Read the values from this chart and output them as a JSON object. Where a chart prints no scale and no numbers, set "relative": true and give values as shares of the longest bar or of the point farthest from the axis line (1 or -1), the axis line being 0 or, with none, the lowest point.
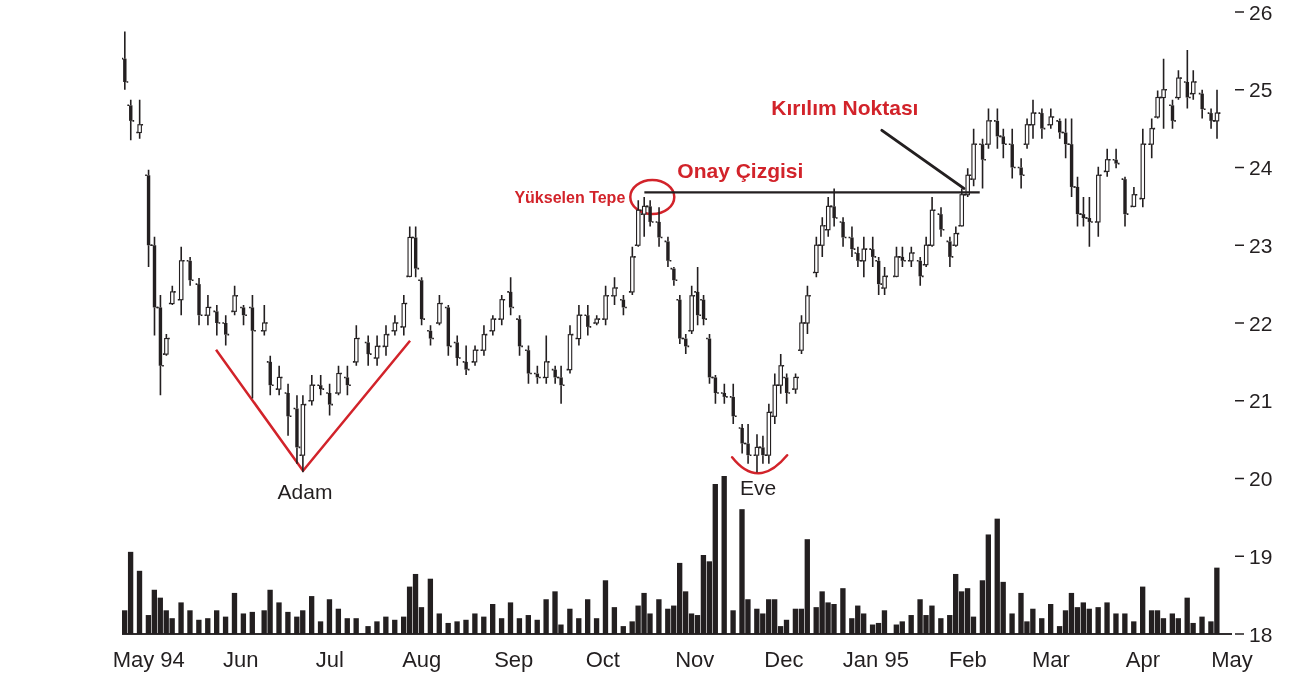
{
  "chart_data": [
    {
      "type": "candlestick",
      "color": "#231f20",
      "x": [
        "1994-04-23",
        "1994-04-25",
        "1994-04-28",
        "1994-05-01",
        "1994-05-03",
        "1994-05-05",
        "1994-05-07",
        "1994-05-09",
        "1994-05-12",
        "1994-05-15",
        "1994-05-18",
        "1994-05-21",
        "1994-05-24",
        "1994-05-27",
        "1994-05-30",
        "1994-06-02",
        "1994-06-05",
        "1994-06-09",
        "1994-06-11",
        "1994-06-14",
        "1994-06-17",
        "1994-06-20",
        "1994-06-22",
        "1994-06-25",
        "1994-06-28",
        "1994-07-01",
        "1994-07-04",
        "1994-07-07",
        "1994-07-10",
        "1994-07-14",
        "1994-07-17",
        "1994-07-20",
        "1994-07-23",
        "1994-07-26",
        "1994-07-28",
        "1994-07-30",
        "1994-08-01",
        "1994-08-04",
        "1994-08-07",
        "1994-08-10",
        "1994-08-13",
        "1994-08-16",
        "1994-08-19",
        "1994-08-22",
        "1994-08-25",
        "1994-08-28",
        "1994-08-31",
        "1994-09-03",
        "1994-09-06",
        "1994-09-09",
        "1994-09-12",
        "1994-09-15",
        "1994-09-17",
        "1994-09-20",
        "1994-09-23",
        "1994-09-26",
        "1994-09-29",
        "1994-10-02",
        "1994-10-05",
        "1994-10-08",
        "1994-10-11",
        "1994-10-13",
        "1994-10-15",
        "1994-10-17",
        "1994-10-20",
        "1994-10-23",
        "1994-10-25",
        "1994-10-27",
        "1994-10-29",
        "1994-10-31",
        "1994-11-02",
        "1994-11-04",
        "1994-11-06",
        "1994-11-08",
        "1994-11-11",
        "1994-11-14",
        "1994-11-17",
        "1994-11-19",
        "1994-11-22",
        "1994-11-24",
        "1994-11-26",
        "1994-11-28",
        "1994-11-30",
        "1994-12-02",
        "1994-12-05",
        "1994-12-07",
        "1994-12-09",
        "1994-12-12",
        "1994-12-14",
        "1994-12-16",
        "1994-12-18",
        "1994-12-21",
        "1994-12-24",
        "1994-12-26",
        "1994-12-28",
        "1994-12-31",
        "1995-01-02",
        "1995-01-04",
        "1995-01-08",
        "1995-01-10",
        "1995-01-13",
        "1995-01-16",
        "1995-01-18",
        "1995-01-20",
        "1995-01-23",
        "1995-01-26",
        "1995-01-28",
        "1995-01-30",
        "1995-02-01",
        "1995-02-03",
        "1995-02-06",
        "1995-02-08",
        "1995-02-11",
        "1995-02-13",
        "1995-02-16",
        "1995-02-19",
        "1995-02-21",
        "1995-02-23",
        "1995-02-26",
        "1995-03-01",
        "1995-03-04",
        "1995-03-06",
        "1995-03-08",
        "1995-03-10",
        "1995-03-12",
        "1995-03-14",
        "1995-03-17",
        "1995-03-20",
        "1995-03-23",
        "1995-03-26",
        "1995-03-29",
        "1995-04-01",
        "1995-04-04",
        "1995-04-06",
        "1995-04-08",
        "1995-04-11",
        "1995-04-13",
        "1995-04-16",
        "1995-04-18",
        "1995-04-21",
        "1995-04-24",
        "1995-04-26"
      ],
      "ohlc": [
        [
          25.4,
          25.75,
          25.0,
          25.1
        ],
        [
          24.8,
          24.87,
          24.35,
          24.6
        ],
        [
          24.45,
          24.87,
          24.37,
          24.55
        ],
        [
          23.9,
          23.97,
          22.72,
          23.0
        ],
        [
          23.0,
          23.11,
          21.84,
          22.2
        ],
        [
          22.2,
          22.36,
          21.07,
          21.45
        ],
        [
          21.6,
          21.86,
          21.58,
          21.8
        ],
        [
          22.25,
          22.48,
          22.23,
          22.4
        ],
        [
          22.3,
          22.98,
          22.1,
          22.8
        ],
        [
          22.8,
          22.85,
          22.48,
          22.55
        ],
        [
          22.5,
          22.58,
          21.97,
          22.1
        ],
        [
          22.1,
          22.36,
          21.97,
          22.2
        ],
        [
          22.15,
          22.23,
          21.84,
          22.0
        ],
        [
          22.0,
          22.1,
          21.71,
          21.85
        ],
        [
          22.15,
          22.48,
          22.1,
          22.35
        ],
        [
          22.2,
          22.23,
          21.97,
          22.1
        ],
        [
          22.2,
          22.36,
          21.03,
          21.9
        ],
        [
          21.9,
          22.23,
          21.84,
          22.0
        ],
        [
          21.5,
          21.58,
          21.07,
          21.2
        ],
        [
          21.15,
          21.45,
          21.07,
          21.3
        ],
        [
          21.1,
          21.22,
          20.55,
          20.8
        ],
        [
          20.9,
          21.07,
          20.19,
          20.4
        ],
        [
          20.3,
          21.07,
          20.08,
          20.95
        ],
        [
          21.0,
          21.33,
          20.94,
          21.2
        ],
        [
          21.2,
          21.33,
          21.07,
          21.15
        ],
        [
          21.1,
          21.22,
          20.81,
          20.95
        ],
        [
          21.1,
          21.45,
          21.07,
          21.35
        ],
        [
          21.3,
          21.45,
          21.07,
          21.2
        ],
        [
          21.5,
          21.97,
          21.45,
          21.8
        ],
        [
          21.75,
          21.84,
          21.45,
          21.6
        ],
        [
          21.55,
          21.84,
          21.45,
          21.7
        ],
        [
          21.7,
          21.97,
          21.58,
          21.85
        ],
        [
          21.9,
          22.1,
          21.84,
          22.0
        ],
        [
          21.95,
          22.36,
          21.84,
          22.25
        ],
        [
          22.6,
          23.24,
          22.59,
          23.1
        ],
        [
          23.1,
          23.24,
          22.59,
          22.7
        ],
        [
          22.55,
          22.59,
          21.97,
          22.05
        ],
        [
          21.9,
          21.97,
          21.71,
          21.8
        ],
        [
          22.0,
          22.36,
          21.97,
          22.25
        ],
        [
          22.2,
          22.23,
          21.58,
          21.7
        ],
        [
          21.75,
          21.84,
          21.45,
          21.55
        ],
        [
          21.5,
          21.71,
          21.33,
          21.4
        ],
        [
          21.5,
          21.71,
          21.45,
          21.65
        ],
        [
          21.65,
          21.97,
          21.58,
          21.85
        ],
        [
          21.9,
          22.1,
          21.84,
          22.05
        ],
        [
          22.05,
          22.36,
          21.97,
          22.3
        ],
        [
          22.4,
          22.59,
          22.1,
          22.2
        ],
        [
          22.05,
          22.1,
          21.58,
          21.7
        ],
        [
          21.65,
          21.71,
          21.22,
          21.35
        ],
        [
          21.35,
          21.45,
          21.22,
          21.3
        ],
        [
          21.3,
          21.84,
          21.22,
          21.5
        ],
        [
          21.4,
          21.45,
          21.22,
          21.3
        ],
        [
          21.3,
          21.45,
          20.96,
          21.2
        ],
        [
          21.4,
          21.97,
          21.35,
          21.85
        ],
        [
          21.8,
          22.23,
          21.71,
          22.1
        ],
        [
          22.1,
          22.23,
          21.84,
          21.95
        ],
        [
          22.0,
          22.1,
          21.97,
          22.05
        ],
        [
          22.05,
          22.48,
          21.97,
          22.35
        ],
        [
          22.35,
          22.59,
          22.23,
          22.45
        ],
        [
          22.3,
          22.36,
          22.1,
          22.2
        ],
        [
          22.4,
          22.98,
          22.36,
          22.85
        ],
        [
          23.0,
          23.58,
          22.98,
          23.45
        ],
        [
          23.4,
          23.62,
          23.11,
          23.5
        ],
        [
          23.5,
          23.58,
          23.24,
          23.3
        ],
        [
          23.3,
          23.49,
          22.98,
          23.1
        ],
        [
          23.05,
          23.11,
          22.72,
          22.8
        ],
        [
          22.7,
          22.72,
          22.48,
          22.55
        ],
        [
          22.3,
          22.36,
          21.73,
          21.8
        ],
        [
          21.8,
          21.86,
          21.6,
          21.7
        ],
        [
          21.9,
          22.48,
          21.86,
          22.35
        ],
        [
          22.4,
          22.72,
          21.97,
          22.1
        ],
        [
          22.3,
          22.36,
          21.97,
          22.05
        ],
        [
          21.8,
          21.86,
          21.22,
          21.3
        ],
        [
          21.3,
          21.33,
          20.96,
          21.1
        ],
        [
          21.1,
          21.22,
          20.96,
          21.05
        ],
        [
          21.05,
          21.22,
          20.7,
          20.8
        ],
        [
          20.65,
          20.7,
          20.32,
          20.45
        ],
        [
          20.45,
          20.7,
          20.19,
          20.3
        ],
        [
          20.3,
          20.57,
          20.08,
          20.4
        ],
        [
          20.4,
          20.55,
          20.19,
          20.3
        ],
        [
          20.3,
          20.96,
          20.19,
          20.85
        ],
        [
          20.8,
          21.35,
          20.7,
          21.2
        ],
        [
          21.2,
          21.6,
          21.09,
          21.45
        ],
        [
          21.3,
          21.35,
          20.96,
          21.1
        ],
        [
          21.15,
          21.35,
          21.09,
          21.3
        ],
        [
          21.65,
          22.1,
          21.6,
          22.0
        ],
        [
          22.0,
          22.48,
          21.86,
          22.35
        ],
        [
          22.65,
          23.11,
          22.59,
          23.0
        ],
        [
          23.0,
          23.36,
          22.85,
          23.25
        ],
        [
          23.2,
          23.62,
          23.11,
          23.5
        ],
        [
          23.5,
          23.73,
          23.24,
          23.35
        ],
        [
          23.3,
          23.36,
          22.98,
          23.1
        ],
        [
          23.1,
          23.24,
          22.85,
          22.95
        ],
        [
          22.9,
          22.98,
          22.72,
          22.8
        ],
        [
          22.8,
          23.11,
          22.59,
          22.95
        ],
        [
          22.95,
          23.11,
          22.72,
          22.85
        ],
        [
          22.8,
          22.85,
          22.36,
          22.5
        ],
        [
          22.45,
          22.72,
          22.36,
          22.6
        ],
        [
          22.6,
          22.98,
          22.59,
          22.85
        ],
        [
          22.85,
          22.98,
          22.72,
          22.8
        ],
        [
          22.8,
          22.98,
          22.72,
          22.9
        ],
        [
          22.8,
          22.85,
          22.48,
          22.6
        ],
        [
          22.75,
          23.11,
          22.72,
          23.0
        ],
        [
          23.0,
          23.62,
          22.98,
          23.45
        ],
        [
          23.4,
          23.49,
          23.11,
          23.2
        ],
        [
          23.05,
          23.11,
          22.72,
          22.85
        ],
        [
          23.0,
          23.24,
          22.98,
          23.15
        ],
        [
          23.25,
          23.73,
          23.24,
          23.65
        ],
        [
          23.65,
          23.99,
          23.62,
          23.9
        ],
        [
          23.85,
          24.5,
          23.76,
          24.3
        ],
        [
          24.3,
          24.37,
          23.73,
          24.1
        ],
        [
          24.3,
          24.76,
          24.24,
          24.6
        ],
        [
          24.6,
          24.76,
          24.24,
          24.4
        ],
        [
          24.4,
          24.5,
          24.12,
          24.3
        ],
        [
          24.3,
          24.5,
          23.86,
          24.0
        ],
        [
          24.0,
          24.12,
          23.73,
          23.9
        ],
        [
          24.3,
          24.63,
          24.24,
          24.55
        ],
        [
          24.55,
          24.87,
          24.37,
          24.7
        ],
        [
          24.7,
          24.76,
          24.37,
          24.5
        ],
        [
          24.55,
          24.76,
          24.5,
          24.65
        ],
        [
          24.6,
          24.63,
          24.37,
          24.45
        ],
        [
          24.45,
          24.63,
          24.12,
          24.3
        ],
        [
          24.3,
          24.63,
          23.62,
          23.75
        ],
        [
          23.75,
          23.88,
          23.24,
          23.4
        ],
        [
          23.4,
          23.62,
          23.24,
          23.35
        ],
        [
          23.35,
          23.62,
          22.98,
          23.3
        ],
        [
          23.3,
          24.01,
          23.11,
          23.9
        ],
        [
          23.95,
          24.24,
          23.88,
          24.1
        ],
        [
          24.1,
          24.24,
          23.99,
          24.05
        ],
        [
          23.85,
          23.88,
          23.24,
          23.4
        ],
        [
          23.5,
          23.75,
          23.49,
          23.65
        ],
        [
          23.6,
          24.5,
          23.49,
          24.3
        ],
        [
          24.3,
          24.63,
          24.12,
          24.5
        ],
        [
          24.65,
          24.99,
          24.63,
          24.9
        ],
        [
          24.9,
          25.4,
          24.5,
          25.0
        ],
        [
          24.8,
          24.87,
          24.5,
          24.6
        ],
        [
          24.9,
          25.25,
          24.87,
          25.15
        ],
        [
          25.1,
          25.51,
          24.76,
          24.9
        ],
        [
          24.95,
          25.25,
          24.87,
          25.1
        ],
        [
          24.95,
          25.0,
          24.63,
          24.75
        ],
        [
          24.7,
          24.76,
          24.5,
          24.6
        ],
        [
          24.6,
          25.0,
          24.37,
          24.7
        ]
      ],
      "series": [
        {
          "type": "line",
          "x": [
            "1994-10-15",
            "1995-02-05"
          ],
          "values": [
            23.68,
            23.68
          ],
          "color": "#231f20"
        }
      ],
      "xlim": [
        "1994-04-22",
        "1995-05-01"
      ],
      "xticks": [
        {
          "value": "1994-05-01",
          "label": "May 94"
        },
        {
          "value": "1994-06-01",
          "label": "Jun"
        },
        {
          "value": "1994-07-01",
          "label": "Jul"
        },
        {
          "value": "1994-08-01",
          "label": "Aug"
        },
        {
          "value": "1994-09-01",
          "label": "Sep"
        },
        {
          "value": "1994-10-01",
          "label": "Oct"
        },
        {
          "value": "1994-11-01",
          "label": "Nov"
        },
        {
          "value": "1994-12-01",
          "label": "Dec"
        },
        {
          "value": "1995-01-01",
          "label": "Jan 95"
        },
        {
          "value": "1995-02-01",
          "label": "Feb"
        },
        {
          "value": "1995-03-01",
          "label": "Mar"
        },
        {
          "value": "1995-04-01",
          "label": "Apr"
        },
        {
          "value": "1995-05-01",
          "label": "May"
        }
      ],
      "ylim": [
        18,
        26
      ],
      "yticks": [
        18,
        19,
        20,
        21,
        22,
        23,
        24,
        25,
        26
      ],
      "annotations": [
        {
          "text": "Kırılım Noktası",
          "x": "1995-01-31",
          "y": 23.68
        },
        {
          "text": "Onay Çizgisi",
          "x": "1994-11-15",
          "y": 23.68
        },
        {
          "text": "Yükselen Tepe",
          "x": "1994-10-17",
          "y": 23.62
        },
        {
          "text": "Adam",
          "x": "1994-06-22",
          "y": 20.1
        },
        {
          "text": "Eve",
          "x": "1994-11-22",
          "y": 20.08
        }
      ]
    },
    {
      "type": "bar",
      "color": "#231f20",
      "relative": true,
      "tick_labels": false,
      "xlim": [
        "1994-04-22",
        "1995-05-01"
      ],
      "x": [
        "1994-04-23",
        "1994-04-25",
        "1994-04-28",
        "1994-05-01",
        "1994-05-03",
        "1994-05-05",
        "1994-05-07",
        "1994-05-09",
        "1994-05-12",
        "1994-05-15",
        "1994-05-18",
        "1994-05-21",
        "1994-05-24",
        "1994-05-27",
        "1994-05-30",
        "1994-06-02",
        "1994-06-05",
        "1994-06-09",
        "1994-06-11",
        "1994-06-14",
        "1994-06-17",
        "1994-06-20",
        "1994-06-22",
        "1994-06-25",
        "1994-06-28",
        "1994-07-01",
        "1994-07-04",
        "1994-07-07",
        "1994-07-10",
        "1994-07-14",
        "1994-07-17",
        "1994-07-20",
        "1994-07-23",
        "1994-07-26",
        "1994-07-28",
        "1994-07-30",
        "1994-08-01",
        "1994-08-04",
        "1994-08-07",
        "1994-08-10",
        "1994-08-13",
        "1994-08-16",
        "1994-08-19",
        "1994-08-22",
        "1994-08-25",
        "1994-08-28",
        "1994-08-31",
        "1994-09-03",
        "1994-09-06",
        "1994-09-09",
        "1994-09-12",
        "1994-09-15",
        "1994-09-17",
        "1994-09-20",
        "1994-09-23",
        "1994-09-26",
        "1994-09-29",
        "1994-10-02",
        "1994-10-05",
        "1994-10-08",
        "1994-10-11",
        "1994-10-13",
        "1994-10-15",
        "1994-10-17",
        "1994-10-20",
        "1994-10-23",
        "1994-10-25",
        "1994-10-27",
        "1994-10-29",
        "1994-10-31",
        "1994-11-02",
        "1994-11-04",
        "1994-11-06",
        "1994-11-08",
        "1994-11-11",
        "1994-11-14",
        "1994-11-17",
        "1994-11-19",
        "1994-11-22",
        "1994-11-24",
        "1994-11-26",
        "1994-11-28",
        "1994-11-30",
        "1994-12-02",
        "1994-12-05",
        "1994-12-07",
        "1994-12-09",
        "1994-12-12",
        "1994-12-14",
        "1994-12-16",
        "1994-12-18",
        "1994-12-21",
        "1994-12-24",
        "1994-12-26",
        "1994-12-28",
        "1994-12-31",
        "1995-01-02",
        "1995-01-04",
        "1995-01-08",
        "1995-01-10",
        "1995-01-13",
        "1995-01-16",
        "1995-01-18",
        "1995-01-20",
        "1995-01-23",
        "1995-01-26",
        "1995-01-28",
        "1995-01-30",
        "1995-02-01",
        "1995-02-03",
        "1995-02-06",
        "1995-02-08",
        "1995-02-11",
        "1995-02-13",
        "1995-02-16",
        "1995-02-19",
        "1995-02-21",
        "1995-02-23",
        "1995-02-26",
        "1995-03-01",
        "1995-03-04",
        "1995-03-06",
        "1995-03-08",
        "1995-03-10",
        "1995-03-12",
        "1995-03-14",
        "1995-03-17",
        "1995-03-20",
        "1995-03-23",
        "1995-03-26",
        "1995-03-29",
        "1995-04-01",
        "1995-04-04",
        "1995-04-06",
        "1995-04-08",
        "1995-04-11",
        "1995-04-13",
        "1995-04-16",
        "1995-04-18",
        "1995-04-21",
        "1995-04-24",
        "1995-04-26"
      ],
      "values": [
        0.15,
        0.52,
        0.4,
        0.12,
        0.28,
        0.23,
        0.15,
        0.1,
        0.2,
        0.15,
        0.09,
        0.1,
        0.15,
        0.11,
        0.26,
        0.13,
        0.14,
        0.15,
        0.28,
        0.2,
        0.14,
        0.11,
        0.15,
        0.24,
        0.08,
        0.22,
        0.16,
        0.1,
        0.1,
        0.05,
        0.08,
        0.11,
        0.09,
        0.11,
        0.3,
        0.38,
        0.17,
        0.35,
        0.13,
        0.07,
        0.08,
        0.09,
        0.13,
        0.11,
        0.19,
        0.1,
        0.2,
        0.1,
        0.12,
        0.09,
        0.22,
        0.27,
        0.06,
        0.16,
        0.1,
        0.22,
        0.1,
        0.34,
        0.17,
        0.05,
        0.08,
        0.18,
        0.26,
        0.13,
        0.22,
        0.16,
        0.18,
        0.45,
        0.27,
        0.13,
        0.12,
        0.5,
        0.46,
        0.95,
        1.0,
        0.15,
        0.79,
        0.22,
        0.16,
        0.13,
        0.22,
        0.22,
        0.05,
        0.09,
        0.16,
        0.16,
        0.6,
        0.17,
        0.27,
        0.2,
        0.19,
        0.29,
        0.1,
        0.18,
        0.13,
        0.06,
        0.07,
        0.15,
        0.06,
        0.08,
        0.12,
        0.22,
        0.12,
        0.18,
        0.1,
        0.12,
        0.38,
        0.27,
        0.29,
        0.11,
        0.34,
        0.63,
        0.73,
        0.33,
        0.13,
        0.26,
        0.08,
        0.16,
        0.1,
        0.19,
        0.05,
        0.15,
        0.26,
        0.17,
        0.2,
        0.16,
        0.17,
        0.2,
        0.13,
        0.13,
        0.08,
        0.3,
        0.15,
        0.15,
        0.1,
        0.13,
        0.1,
        0.23,
        0.07,
        0.11,
        0.08,
        0.42
      ]
    }
  ]
}
